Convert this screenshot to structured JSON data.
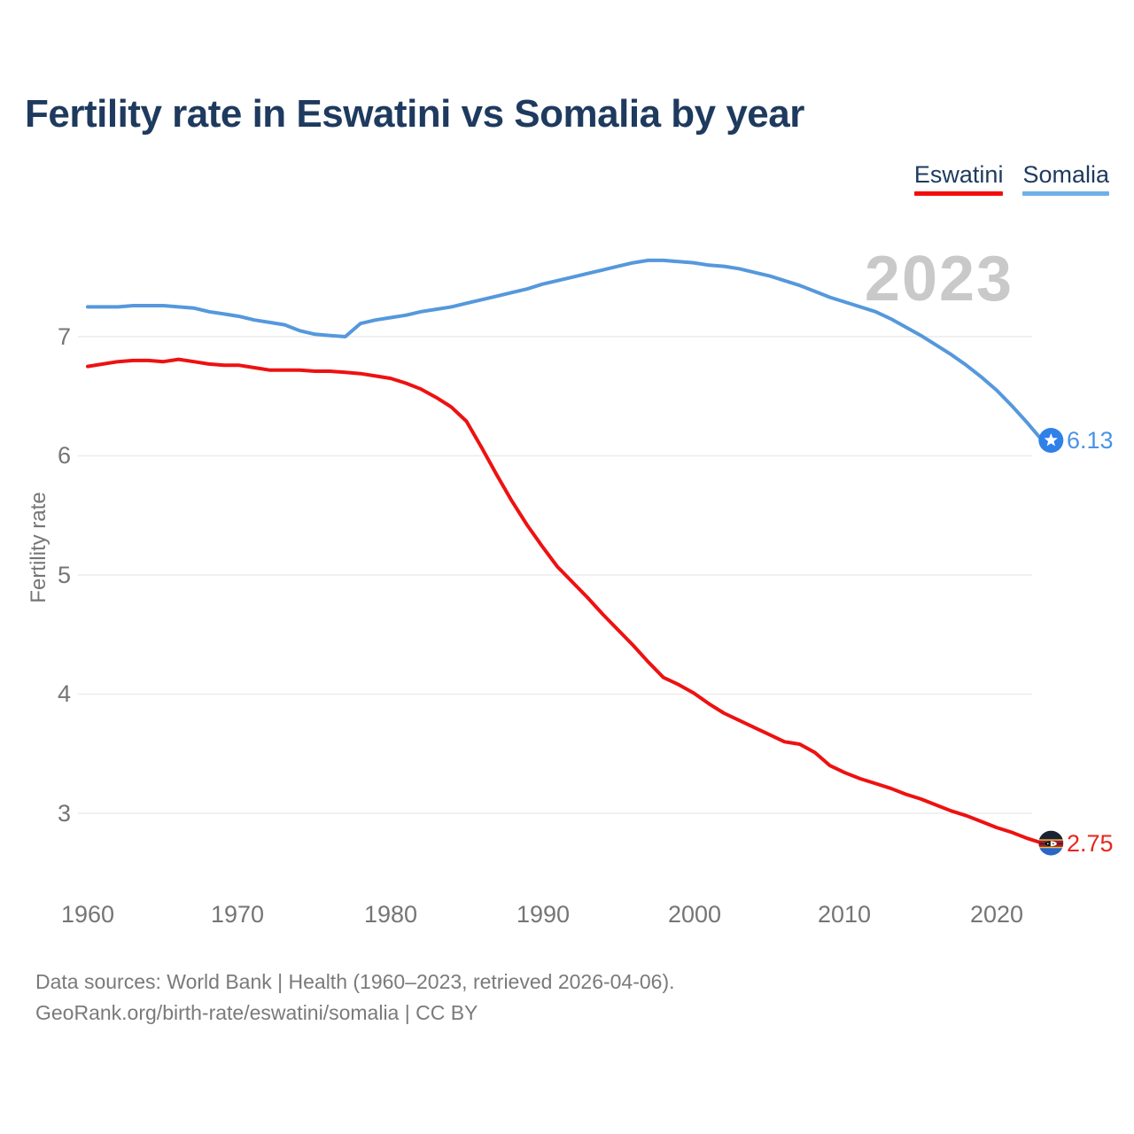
{
  "header": {
    "title": "Fertility rate in Eswatini vs Somalia by year"
  },
  "legend": {
    "items": [
      {
        "label": "Eswatini",
        "color": "#f40d0d"
      },
      {
        "label": "Somalia",
        "color": "#6fb0e8"
      }
    ]
  },
  "watermark": "2023",
  "axes": {
    "y_label": "Fertility rate",
    "y_ticks": [
      "7",
      "6",
      "5",
      "4",
      "3"
    ],
    "x_ticks": [
      "1960",
      "1970",
      "1980",
      "1990",
      "2000",
      "2010",
      "2020"
    ]
  },
  "end_labels": {
    "somalia": "6.13",
    "eswatini": "2.75"
  },
  "footer": {
    "line1": "Data sources: World Bank | Health (1960–2023, retrieved 2026-04-06).",
    "line2": "GeoRank.org/birth-rate/eswatini/somalia | CC BY"
  },
  "chart_data": {
    "type": "line",
    "title": "Fertility rate in Eswatini vs Somalia by year",
    "xlabel": "",
    "ylabel": "Fertility rate",
    "xlim": [
      1960,
      2023
    ],
    "ylim": [
      2.4,
      7.9
    ],
    "y_tick_values": [
      7,
      6,
      5,
      4,
      3
    ],
    "grid": "horizontal",
    "legend_position": "top-right",
    "annotation": "2023",
    "x": [
      1960,
      1961,
      1962,
      1963,
      1964,
      1965,
      1966,
      1967,
      1968,
      1969,
      1970,
      1971,
      1972,
      1973,
      1974,
      1975,
      1976,
      1977,
      1978,
      1979,
      1980,
      1981,
      1982,
      1983,
      1984,
      1985,
      1986,
      1987,
      1988,
      1989,
      1990,
      1991,
      1992,
      1993,
      1994,
      1995,
      1996,
      1997,
      1998,
      1999,
      2000,
      2001,
      2002,
      2003,
      2004,
      2005,
      2006,
      2007,
      2008,
      2009,
      2010,
      2011,
      2012,
      2013,
      2014,
      2015,
      2016,
      2017,
      2018,
      2019,
      2020,
      2021,
      2022,
      2023
    ],
    "series": [
      {
        "name": "Somalia",
        "color": "#5598dc",
        "end_value": 6.13,
        "values": [
          7.25,
          7.25,
          7.25,
          7.26,
          7.26,
          7.26,
          7.25,
          7.24,
          7.21,
          7.19,
          7.17,
          7.14,
          7.12,
          7.1,
          7.05,
          7.02,
          7.01,
          7.0,
          7.11,
          7.14,
          7.16,
          7.18,
          7.21,
          7.23,
          7.25,
          7.28,
          7.31,
          7.34,
          7.37,
          7.4,
          7.44,
          7.47,
          7.5,
          7.53,
          7.56,
          7.59,
          7.62,
          7.64,
          7.64,
          7.63,
          7.62,
          7.6,
          7.59,
          7.57,
          7.54,
          7.51,
          7.47,
          7.43,
          7.38,
          7.33,
          7.29,
          7.25,
          7.21,
          7.15,
          7.08,
          7.01,
          6.93,
          6.85,
          6.76,
          6.66,
          6.55,
          6.42,
          6.28,
          6.13
        ]
      },
      {
        "name": "Eswatini",
        "color": "#ee1111",
        "end_value": 2.75,
        "values": [
          6.75,
          6.77,
          6.79,
          6.8,
          6.8,
          6.79,
          6.81,
          6.79,
          6.77,
          6.76,
          6.76,
          6.74,
          6.72,
          6.72,
          6.72,
          6.71,
          6.71,
          6.7,
          6.69,
          6.67,
          6.65,
          6.61,
          6.56,
          6.49,
          6.41,
          6.29,
          6.07,
          5.84,
          5.62,
          5.42,
          5.24,
          5.07,
          4.94,
          4.81,
          4.67,
          4.54,
          4.41,
          4.27,
          4.14,
          4.08,
          4.01,
          3.92,
          3.84,
          3.78,
          3.72,
          3.66,
          3.6,
          3.58,
          3.51,
          3.4,
          3.34,
          3.29,
          3.25,
          3.21,
          3.16,
          3.12,
          3.07,
          3.02,
          2.98,
          2.93,
          2.88,
          2.84,
          2.79,
          2.75
        ]
      }
    ]
  }
}
